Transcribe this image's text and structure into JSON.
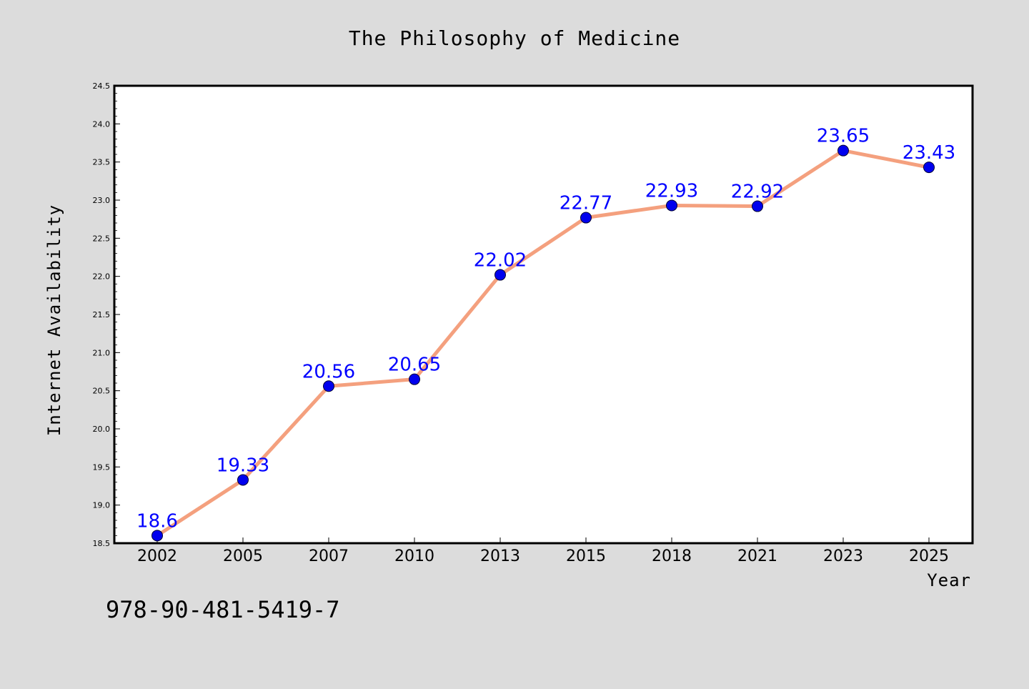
{
  "chart_data": {
    "type": "line",
    "title": "The Philosophy of Medicine",
    "xlabel": "Year",
    "ylabel": "Internet Availability",
    "categories": [
      "2002",
      "2005",
      "2007",
      "2010",
      "2013",
      "2015",
      "2018",
      "2021",
      "2023",
      "2025"
    ],
    "series": [
      {
        "values": [
          18.6,
          19.33,
          20.56,
          20.65,
          22.02,
          22.77,
          22.93,
          22.92,
          23.65,
          23.43
        ],
        "labels": [
          "18.6",
          "19.33",
          "20.56",
          "20.65",
          "22.02",
          "22.77",
          "22.93",
          "22.92",
          "23.65",
          "23.43"
        ]
      }
    ],
    "ylim": [
      18.5,
      24.5
    ],
    "yticks": [
      "18.5",
      "19.0",
      "19.5",
      "20.0",
      "20.5",
      "21.0",
      "21.5",
      "22.0",
      "22.5",
      "23.0",
      "23.5",
      "24.0",
      "24.5"
    ],
    "grid": false,
    "legend": "none",
    "colors": {
      "line": "#f4a07e",
      "marker": "#0000ee",
      "data_label": "#0000ff",
      "background": "#dcdcdc",
      "plot_background": "#ffffff"
    }
  },
  "footer": {
    "isbn": "978-90-481-5419-7"
  }
}
